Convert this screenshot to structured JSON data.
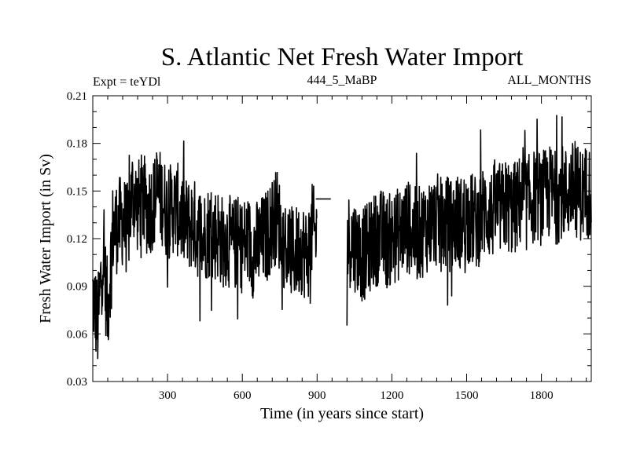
{
  "chart_data": {
    "type": "line",
    "title": "S. Atlantic Net Fresh Water Import",
    "experiment_label": "Expt = teYDl",
    "subtitle_center": "444_5_MaBP",
    "subtitle_right": "ALL_MONTHS",
    "xlabel": "Time (in years since start)",
    "ylabel": "Fresh Water Import (in Sv)",
    "xlim": [
      0,
      2000
    ],
    "ylim": [
      0.03,
      0.21
    ],
    "x_ticks": [
      300,
      600,
      900,
      1200,
      1500,
      1800
    ],
    "x_tick_labels": [
      "300",
      "600",
      "900",
      "1200",
      "1500",
      "1800"
    ],
    "y_ticks": [
      0.03,
      0.06,
      0.09,
      0.12,
      0.15,
      0.18,
      0.21
    ],
    "y_tick_labels": [
      "0.03",
      "0.06",
      "0.09",
      "0.12",
      "0.15",
      "0.18",
      "0.21"
    ],
    "series": [
      {
        "name": "Net Fresh Water Import",
        "x_start": 0,
        "x_step": 20,
        "values": [
          0.085,
          0.065,
          0.11,
          0.075,
          0.125,
          0.128,
          0.132,
          0.125,
          0.15,
          0.14,
          0.145,
          0.138,
          0.142,
          0.148,
          0.145,
          0.135,
          0.14,
          0.138,
          0.132,
          0.128,
          0.13,
          0.125,
          0.12,
          0.125,
          0.122,
          0.124,
          0.118,
          0.12,
          0.115,
          0.118,
          0.115,
          0.12,
          0.112,
          0.115,
          0.118,
          0.122,
          0.13,
          0.135,
          0.12,
          0.115,
          0.11,
          0.112,
          0.115,
          0.108,
          0.125,
          0.12,
          null,
          null,
          null,
          null,
          null,
          0.12,
          0.118,
          0.115,
          0.11,
          0.112,
          0.118,
          0.12,
          0.122,
          0.118,
          0.12,
          0.122,
          0.125,
          0.128,
          0.125,
          0.122,
          0.125,
          0.128,
          0.13,
          0.132,
          0.128,
          0.13,
          0.128,
          0.132,
          0.13,
          0.135,
          0.132,
          0.13,
          0.135,
          0.138,
          0.135,
          0.14,
          0.138,
          0.142,
          0.138,
          0.14,
          0.145,
          0.142,
          0.145,
          0.148,
          0.145,
          0.148,
          0.15,
          0.145,
          0.15,
          0.148,
          0.152,
          0.15,
          0.148,
          0.15
        ]
      }
    ],
    "gap_segment": {
      "x": [
        895,
        955
      ],
      "value": 0.145
    },
    "min_value_approx": 0.044,
    "max_value_approx": 0.202
  }
}
